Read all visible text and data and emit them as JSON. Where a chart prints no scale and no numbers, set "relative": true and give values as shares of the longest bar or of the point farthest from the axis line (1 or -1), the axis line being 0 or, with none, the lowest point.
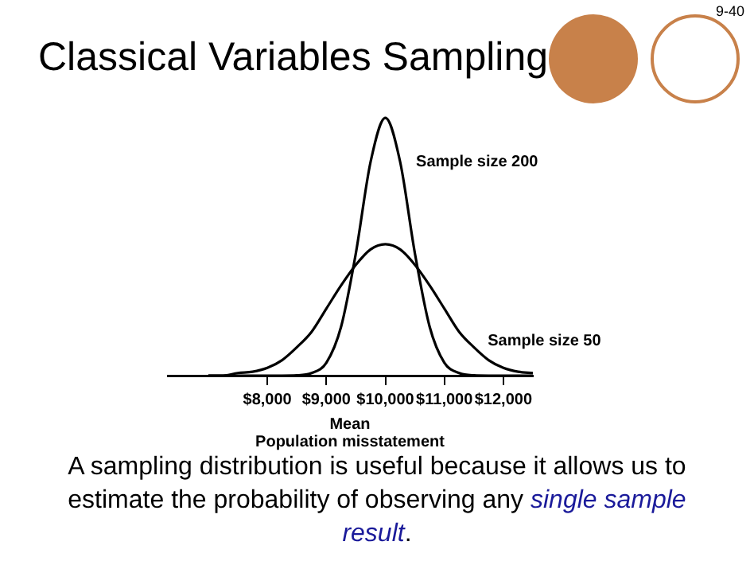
{
  "chart_data": {
    "type": "line",
    "title": "Classical Variables Sampling",
    "xlabel": "Mean\nPopulation misstatement",
    "relative": true,
    "x": [
      7000,
      7250,
      7500,
      7750,
      8000,
      8250,
      8500,
      8750,
      9000,
      9250,
      9500,
      9750,
      10000,
      10250,
      10500,
      10750,
      11000,
      11250,
      11500,
      11750,
      12000,
      12250,
      12500
    ],
    "xlim": [
      6300,
      12500
    ],
    "xticks": [
      {
        "value": 8000,
        "label": "$8,000"
      },
      {
        "value": 9000,
        "label": "$9,000"
      },
      {
        "value": 10000,
        "label": "$10,000"
      },
      {
        "value": 11000,
        "label": "$11,000"
      },
      {
        "value": 12000,
        "label": "$12,000"
      }
    ],
    "series": [
      {
        "name": "Sample size 200",
        "color": "#000000",
        "values": [
          0,
          0,
          0,
          0,
          0,
          0,
          0.001,
          0.01,
          0.05,
          0.19,
          0.475,
          0.83,
          1,
          0.83,
          0.475,
          0.19,
          0.05,
          0.01,
          0.001,
          0,
          0,
          0,
          0
        ]
      },
      {
        "name": "Sample size 50",
        "color": "#000000",
        "values": [
          0,
          0,
          0.01,
          0.015,
          0.03,
          0.06,
          0.11,
          0.17,
          0.26,
          0.35,
          0.43,
          0.49,
          0.51,
          0.49,
          0.43,
          0.35,
          0.26,
          0.17,
          0.11,
          0.06,
          0.03,
          0.015,
          0.01
        ]
      }
    ],
    "annotations": [
      "9-40",
      "A sampling distribution is useful because it allows us to estimate the probability of observing any",
      "single sample result",
      "."
    ]
  }
}
